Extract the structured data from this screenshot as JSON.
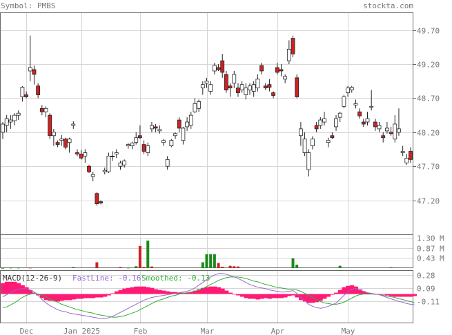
{
  "header": {
    "symbol_label": "Symbol: PMBS",
    "site": "stockta.com"
  },
  "macd_header": {
    "title": "MACD(12-26-9)",
    "fast": "FastLine: -0.16",
    "smooth": "Smoothed: -0.13"
  },
  "colors": {
    "up_fill": "#ffffff",
    "down_fill": "#cc2222",
    "vol_up": "#1a8a1a",
    "vol_down": "#cc2222",
    "fast_line": "#9966cc",
    "smooth_line": "#33aa33",
    "histogram": "#ff1a75",
    "grid": "#d6d6d6",
    "frame": "#666666"
  },
  "chart_data": {
    "type": "candlestick",
    "price_ticks": [
      "49.70",
      "49.20",
      "48.70",
      "48.20",
      "47.70",
      "47.20"
    ],
    "volume_ticks": [
      "1.30 M",
      "0.87 M",
      "0.43 M"
    ],
    "macd_ticks": [
      "0.28",
      "0.09",
      "-0.11"
    ],
    "x_tick_labels": [
      "Dec",
      "Jan 2025",
      "Feb",
      "Mar",
      "Apr",
      "May"
    ],
    "x_tick_bar_index": [
      6,
      20,
      35,
      52,
      70,
      88
    ],
    "ylim": [
      46.7,
      49.95
    ],
    "candles": [
      [
        48.2,
        48.35,
        48.1,
        48.32
      ],
      [
        48.3,
        48.45,
        48.2,
        48.4
      ],
      [
        48.35,
        48.45,
        48.25,
        48.38
      ],
      [
        48.37,
        48.48,
        48.3,
        48.45
      ],
      [
        48.45,
        48.52,
        48.38,
        48.48
      ],
      [
        48.72,
        48.88,
        48.65,
        48.86
      ],
      [
        48.75,
        48.8,
        48.7,
        48.72
      ],
      [
        49.1,
        49.62,
        48.95,
        49.15
      ],
      [
        49.12,
        49.18,
        48.9,
        49.05
      ],
      [
        48.88,
        48.92,
        48.7,
        48.75
      ],
      [
        48.55,
        48.6,
        48.45,
        48.5
      ],
      [
        48.5,
        48.58,
        48.42,
        48.55
      ],
      [
        48.45,
        48.48,
        48.1,
        48.15
      ],
      [
        48.15,
        48.25,
        48.0,
        48.2
      ],
      [
        48.05,
        48.08,
        47.98,
        48.02
      ],
      [
        48.08,
        48.16,
        48.0,
        48.1
      ],
      [
        48.1,
        48.12,
        47.95,
        47.98
      ],
      [
        48.05,
        48.12,
        47.9,
        48.1
      ],
      [
        48.3,
        48.36,
        48.25,
        48.32
      ],
      [
        47.9,
        47.95,
        47.85,
        47.88
      ],
      [
        47.88,
        47.94,
        47.8,
        47.82
      ],
      [
        47.85,
        47.95,
        47.75,
        47.9
      ],
      [
        47.7,
        47.72,
        47.6,
        47.62
      ],
      [
        47.55,
        47.62,
        47.48,
        47.58
      ],
      [
        47.3,
        47.32,
        47.12,
        47.15
      ],
      [
        47.18,
        47.2,
        47.14,
        47.16
      ],
      [
        47.62,
        47.68,
        47.58,
        47.64
      ],
      [
        47.62,
        47.9,
        47.6,
        47.85
      ],
      [
        47.85,
        47.92,
        47.78,
        47.84
      ],
      [
        47.88,
        47.95,
        47.82,
        47.9
      ],
      [
        47.7,
        47.78,
        47.65,
        47.75
      ],
      [
        47.72,
        47.8,
        47.68,
        47.78
      ],
      [
        48.0,
        48.04,
        47.96,
        48.02
      ],
      [
        48.0,
        48.06,
        47.95,
        48.04
      ],
      [
        48.05,
        48.2,
        48.02,
        48.12
      ],
      [
        48.15,
        48.3,
        48.1,
        48.12
      ],
      [
        48.02,
        48.08,
        47.88,
        47.92
      ],
      [
        47.9,
        48.05,
        47.85,
        48.0
      ],
      [
        48.25,
        48.35,
        48.2,
        48.3
      ],
      [
        48.28,
        48.32,
        48.2,
        48.26
      ],
      [
        48.22,
        48.3,
        48.18,
        48.24
      ],
      [
        48.05,
        48.1,
        48.0,
        48.08
      ],
      [
        47.7,
        47.85,
        47.65,
        47.8
      ],
      [
        48.0,
        48.1,
        47.98,
        48.08
      ],
      [
        48.15,
        48.2,
        48.1,
        48.18
      ],
      [
        48.38,
        48.42,
        48.2,
        48.26
      ],
      [
        48.08,
        48.28,
        48.02,
        48.26
      ],
      [
        48.28,
        48.42,
        48.22,
        48.35
      ],
      [
        48.3,
        48.5,
        48.25,
        48.45
      ],
      [
        48.5,
        48.7,
        48.48,
        48.62
      ],
      [
        48.55,
        48.68,
        48.5,
        48.65
      ],
      [
        48.85,
        48.95,
        48.75,
        48.9
      ],
      [
        48.92,
        49.0,
        48.85,
        48.95
      ],
      [
        48.8,
        48.95,
        48.75,
        48.9
      ],
      [
        49.1,
        49.22,
        49.05,
        49.18
      ],
      [
        49.15,
        49.2,
        49.1,
        49.12
      ],
      [
        49.25,
        49.35,
        49.0,
        49.08
      ],
      [
        49.05,
        49.1,
        48.78,
        48.82
      ],
      [
        48.88,
        48.92,
        48.72,
        48.85
      ],
      [
        48.92,
        49.1,
        48.85,
        49.05
      ],
      [
        48.85,
        48.92,
        48.72,
        48.78
      ],
      [
        48.82,
        48.95,
        48.78,
        48.9
      ],
      [
        48.75,
        48.92,
        48.68,
        48.85
      ],
      [
        48.82,
        48.92,
        48.75,
        48.88
      ],
      [
        48.8,
        48.95,
        48.72,
        48.9
      ],
      [
        48.85,
        49.05,
        48.8,
        48.98
      ],
      [
        49.18,
        49.22,
        49.05,
        49.1
      ],
      [
        48.88,
        48.92,
        48.82,
        48.85
      ],
      [
        48.9,
        48.98,
        48.8,
        48.86
      ],
      [
        48.78,
        48.8,
        48.7,
        48.74
      ],
      [
        49.15,
        49.22,
        49.05,
        49.08
      ],
      [
        49.12,
        49.2,
        49.02,
        49.1
      ],
      [
        48.98,
        49.05,
        48.92,
        49.02
      ],
      [
        49.25,
        49.55,
        49.2,
        49.42
      ],
      [
        49.58,
        49.62,
        49.3,
        49.35
      ],
      [
        49.0,
        49.05,
        48.7,
        48.72
      ],
      [
        48.15,
        48.35,
        48.0,
        48.25
      ],
      [
        47.9,
        48.2,
        47.85,
        48.1
      ],
      [
        47.65,
        47.95,
        47.55,
        47.9
      ],
      [
        48.0,
        48.14,
        47.95,
        48.1
      ],
      [
        48.3,
        48.35,
        48.2,
        48.25
      ],
      [
        48.3,
        48.42,
        48.25,
        48.38
      ],
      [
        48.35,
        48.5,
        48.3,
        48.4
      ],
      [
        48.05,
        48.12,
        47.98,
        48.08
      ],
      [
        48.15,
        48.2,
        48.1,
        48.12
      ],
      [
        48.28,
        48.45,
        48.22,
        48.4
      ],
      [
        48.42,
        48.5,
        48.35,
        48.48
      ],
      [
        48.58,
        48.75,
        48.55,
        48.72
      ],
      [
        48.78,
        48.88,
        48.72,
        48.85
      ],
      [
        48.82,
        48.88,
        48.78,
        48.86
      ],
      [
        48.6,
        48.68,
        48.55,
        48.62
      ],
      [
        48.5,
        48.55,
        48.4,
        48.44
      ],
      [
        48.35,
        48.4,
        48.28,
        48.32
      ],
      [
        48.35,
        48.5,
        48.3,
        48.4
      ],
      [
        48.58,
        48.82,
        48.52,
        48.58
      ],
      [
        48.35,
        48.4,
        48.22,
        48.28
      ],
      [
        48.25,
        48.35,
        48.2,
        48.3
      ],
      [
        48.15,
        48.2,
        48.05,
        48.12
      ],
      [
        48.22,
        48.35,
        48.18,
        48.26
      ],
      [
        48.2,
        48.28,
        48.15,
        48.18
      ],
      [
        48.1,
        48.45,
        48.05,
        48.32
      ],
      [
        48.2,
        48.55,
        48.15,
        48.25
      ],
      [
        47.9,
        48.0,
        47.85,
        47.92
      ],
      [
        47.75,
        47.88,
        47.72,
        47.82
      ],
      [
        47.92,
        47.98,
        47.75,
        47.8
      ]
    ],
    "volume": [
      0.01,
      0.0,
      0.02,
      0.0,
      0.02,
      0.0,
      0.0,
      0.02,
      0.0,
      0.0,
      0.0,
      0.0,
      0.0,
      0.0,
      0.0,
      0.0,
      0.0,
      0.0,
      0.05,
      0.0,
      0.0,
      0.0,
      0.0,
      0.0,
      0.25,
      0.0,
      0.0,
      0.0,
      0.0,
      0.0,
      0.05,
      0.0,
      0.02,
      0.0,
      0.08,
      0.95,
      0.05,
      1.18,
      0.07,
      0.0,
      0.0,
      0.0,
      0.0,
      0.0,
      0.0,
      0.0,
      0.0,
      0.0,
      0.0,
      0.0,
      0.0,
      0.25,
      0.6,
      0.6,
      0.6,
      0.22,
      0.06,
      0.0,
      0.1,
      0.08,
      0.07,
      0.0,
      0.0,
      0.0,
      0.0,
      0.0,
      0.0,
      0.0,
      0.0,
      0.0,
      0.0,
      0.0,
      0.0,
      0.0,
      0.42,
      0.15,
      0.0,
      0.0,
      0.0,
      0.0,
      0.0,
      0.0,
      0.0,
      0.0,
      0.0,
      0.0,
      0.1,
      0.0,
      0.0,
      0.0,
      0.0,
      0.0,
      0.0,
      0.0,
      0.0,
      0.0,
      0.0,
      0.0,
      0.0,
      0.04,
      0.0,
      0.0,
      0.0,
      0.0,
      0.0,
      0.0
    ],
    "volume_up": [
      1,
      0,
      1,
      0,
      1,
      0,
      0,
      0,
      0,
      0,
      0,
      0,
      0,
      0,
      0,
      0,
      0,
      0,
      1,
      0,
      0,
      0,
      0,
      0,
      0,
      0,
      0,
      0,
      0,
      0,
      0,
      0,
      1,
      0,
      1,
      0,
      0,
      1,
      0,
      0,
      0,
      0,
      0,
      0,
      0,
      0,
      0,
      0,
      0,
      0,
      0,
      1,
      1,
      1,
      1,
      0,
      0,
      0,
      0,
      0,
      0,
      0,
      0,
      0,
      0,
      0,
      0,
      0,
      0,
      0,
      0,
      0,
      0,
      0,
      1,
      1,
      0,
      0,
      0,
      0,
      0,
      0,
      0,
      0,
      0,
      0,
      1,
      0,
      0,
      0,
      0,
      0,
      0,
      0,
      0,
      0,
      0,
      0,
      0,
      1,
      0,
      0,
      0,
      0,
      0,
      0
    ],
    "macd_ylim": [
      -0.42,
      0.34
    ],
    "macd_fast": [
      -0.04,
      -0.01,
      0.02,
      0.05,
      0.07,
      0.08,
      0.08,
      0.06,
      0.03,
      -0.02,
      -0.08,
      -0.13,
      -0.17,
      -0.2,
      -0.23,
      -0.25,
      -0.26,
      -0.28,
      -0.29,
      -0.3,
      -0.31,
      -0.32,
      -0.33,
      -0.34,
      -0.35,
      -0.36,
      -0.36,
      -0.35,
      -0.33,
      -0.3,
      -0.27,
      -0.24,
      -0.21,
      -0.18,
      -0.15,
      -0.12,
      -0.09,
      -0.07,
      -0.05,
      -0.04,
      -0.03,
      -0.02,
      -0.01,
      0.0,
      0.01,
      0.02,
      0.03,
      0.04,
      0.06,
      0.09,
      0.13,
      0.17,
      0.21,
      0.25,
      0.28,
      0.3,
      0.3,
      0.29,
      0.27,
      0.25,
      0.23,
      0.2,
      0.17,
      0.14,
      0.12,
      0.1,
      0.09,
      0.08,
      0.06,
      0.05,
      0.04,
      0.03,
      0.03,
      0.04,
      0.05,
      0.01,
      -0.05,
      -0.1,
      -0.15,
      -0.18,
      -0.2,
      -0.21,
      -0.2,
      -0.18,
      -0.16,
      -0.13,
      -0.08,
      -0.02,
      0.03,
      0.07,
      0.08,
      0.06,
      0.04,
      0.02,
      0.01,
      0.0,
      -0.01,
      -0.03,
      -0.05,
      -0.07,
      -0.09,
      -0.11,
      -0.12,
      -0.14,
      -0.15,
      -0.16
    ],
    "macd_smooth": [
      -0.2,
      -0.19,
      -0.16,
      -0.13,
      -0.09,
      -0.05,
      -0.02,
      0.0,
      0.01,
      0.0,
      -0.02,
      -0.04,
      -0.07,
      -0.1,
      -0.12,
      -0.15,
      -0.17,
      -0.19,
      -0.21,
      -0.23,
      -0.24,
      -0.26,
      -0.27,
      -0.28,
      -0.3,
      -0.31,
      -0.32,
      -0.33,
      -0.34,
      -0.34,
      -0.33,
      -0.32,
      -0.3,
      -0.28,
      -0.26,
      -0.23,
      -0.2,
      -0.17,
      -0.14,
      -0.11,
      -0.09,
      -0.07,
      -0.05,
      -0.03,
      -0.02,
      0.0,
      0.01,
      0.02,
      0.03,
      0.04,
      0.06,
      0.08,
      0.11,
      0.14,
      0.17,
      0.2,
      0.22,
      0.24,
      0.25,
      0.25,
      0.25,
      0.24,
      0.23,
      0.21,
      0.19,
      0.18,
      0.16,
      0.14,
      0.13,
      0.11,
      0.1,
      0.09,
      0.08,
      0.07,
      0.07,
      0.06,
      0.04,
      0.01,
      -0.02,
      -0.05,
      -0.08,
      -0.11,
      -0.13,
      -0.14,
      -0.15,
      -0.15,
      -0.14,
      -0.12,
      -0.09,
      -0.06,
      -0.03,
      -0.01,
      0.0,
      0.0,
      0.0,
      0.0,
      -0.01,
      -0.02,
      -0.03,
      -0.04,
      -0.05,
      -0.07,
      -0.08,
      -0.1,
      -0.11,
      -0.13
    ]
  }
}
